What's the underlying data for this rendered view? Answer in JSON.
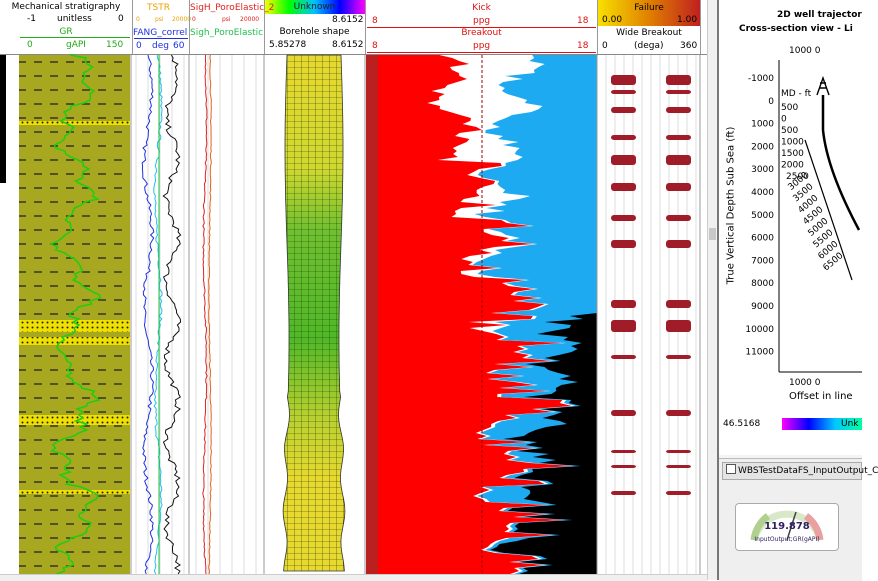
{
  "tracks": {
    "mech": {
      "title": "Mechanical stratigraphy",
      "min": "-1",
      "unit": "unitless",
      "max": "0"
    },
    "gr": {
      "title": "GR",
      "min": "0",
      "unit": "gAPI",
      "max": "150",
      "color": "#22a818"
    },
    "tstr": {
      "title": "TSTR",
      "min": "0",
      "unit": "psi",
      "max": "20000",
      "color": "#e9a000"
    },
    "sigh": {
      "title": "SigH_PoroElastic_2",
      "min": "0",
      "unit": "psi",
      "max": "20000",
      "color": "#e02020"
    },
    "fang": {
      "title": "FANG_correl",
      "min": "0",
      "unit": "deg",
      "max": "60",
      "color": "#2030e0"
    },
    "sigh2": {
      "title": "Sigh_PoroElastic",
      "color": "#22c050"
    },
    "unknown": {
      "title": "Unknown",
      "max": "8.6152"
    },
    "borehole": {
      "title": "Borehole shape",
      "min": "5.85278",
      "max": "8.6152"
    },
    "kick": {
      "title": "Kick",
      "min": "8",
      "unit": "ppg",
      "max": "18",
      "color": "#e01010"
    },
    "breakout": {
      "title": "Breakout",
      "min": "8",
      "unit": "ppg",
      "max": "18",
      "color": "#e01010"
    },
    "failure": {
      "title": "Failure",
      "min": "0.00",
      "max": "1.00"
    },
    "wide": {
      "title": "Wide Breakout",
      "min": "0",
      "unit": "(dega)",
      "max": "360"
    }
  },
  "right_panel": {
    "title1": "2D well trajector",
    "title2": "Cross-section view - Li",
    "top_axis": "1000 0",
    "md_label": "MD - ft",
    "ylabel": "True Vertical Depth Sub Sea (ft)",
    "yticks": [
      "-1000",
      "0",
      "1000",
      "2000",
      "3000",
      "4000",
      "5000",
      "6000",
      "7000",
      "8000",
      "9000",
      "10000",
      "11000"
    ],
    "md_ticks": [
      "500",
      "0",
      "500",
      "1000",
      "1500",
      "2000",
      "2500",
      "3000",
      "3500",
      "4000",
      "4500",
      "5000",
      "5500",
      "6000",
      "6500"
    ],
    "bottom_axis": "1000 0",
    "xlabel": "Offset in line",
    "colorbar_min": "46.5168",
    "colorbar_label": "Unk",
    "window_title": "WBSTestDataFS_InputOutput_C",
    "gauge_value": "119.878",
    "gauge_label": "InputOutput;GR(gAPI)"
  },
  "colors": {
    "olive": "#a8a820",
    "yellow": "#f0e000",
    "kick_red": "#ff0000",
    "breakout_blue": "#1eaaf0",
    "failure": "#a01c28"
  }
}
